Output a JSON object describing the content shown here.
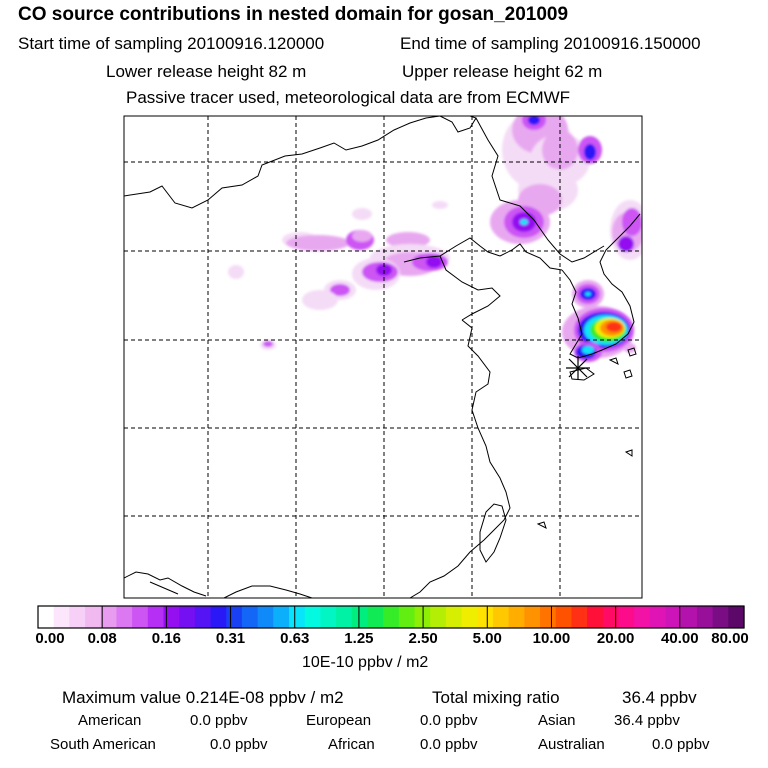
{
  "header": {
    "title": "CO  source contributions in nested domain for gosan_201009",
    "start_label": "Start time of sampling 20100916.120000",
    "end_label": "End time of sampling 20100916.150000",
    "lower_label": "Lower release height   82 m",
    "upper_label": "Upper release height   62 m",
    "note": "Passive tracer used, meteorological data are from ECMWF"
  },
  "colorbar": {
    "ticks": [
      "0.00",
      "0.08",
      "0.16",
      "0.31",
      "0.63",
      "1.25",
      "2.50",
      "5.00",
      "10.00",
      "20.00",
      "40.00",
      "80.00"
    ],
    "colors": [
      "#ffffff",
      "#fbe6fb",
      "#f6d0f6",
      "#f0baf0",
      "#e89cf0",
      "#dc78f2",
      "#cc55f4",
      "#b530f4",
      "#9410f0",
      "#7410f2",
      "#5514f4",
      "#2a18f6",
      "#1a40f4",
      "#1466f6",
      "#108af8",
      "#0cb0fa",
      "#08e4fa",
      "#04fae0",
      "#02f6c4",
      "#00f2a4",
      "#00ee80",
      "#10ea54",
      "#36ec28",
      "#62ee10",
      "#8eee06",
      "#b4ee04",
      "#d6ee02",
      "#f0ee00",
      "#ffe200",
      "#ffc800",
      "#ffae00",
      "#ff9200",
      "#ff7400",
      "#ff5200",
      "#ff3014",
      "#ff1038",
      "#ff0a64",
      "#fc0c8a",
      "#f212a6",
      "#e014b4",
      "#cc14b8",
      "#b412ac",
      "#98109a",
      "#7a0c84",
      "#5c0868"
    ],
    "units": "10E-10 ppbv / m2"
  },
  "stats": {
    "max_label": "Maximum value  0.214E-08 ppbv / m2",
    "total_label": "Total mixing ratio",
    "total_value": "36.4 ppbv",
    "american_label": "American",
    "american_value": "0.0 ppbv",
    "european_label": "European",
    "european_value": "0.0 ppbv",
    "asian_label": "Asian",
    "asian_value": "36.4 ppbv",
    "south_american_label": "South American",
    "south_american_value": "0.0 ppbv",
    "african_label": "African",
    "african_value": "0.0 ppbv",
    "australian_label": "Australian",
    "australian_value": "0.0 ppbv"
  },
  "map": {
    "receptor_marker": "asterisk-icon",
    "plume_colors": {
      "faint": "#f4dcf6",
      "light": "#e8a8f0",
      "medium": "#cc55f4",
      "strong": "#9410f0",
      "blue": "#2a18f6",
      "cyan": "#08e4fa",
      "green": "#36ec28",
      "yellow": "#f0ee00",
      "orange": "#ff9200",
      "red": "#ff3014"
    }
  }
}
